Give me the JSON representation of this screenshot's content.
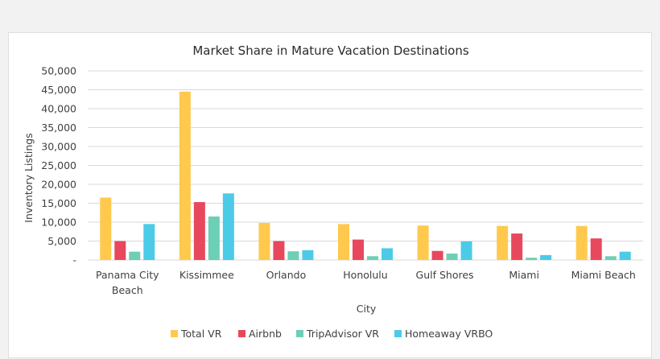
{
  "chart_data": {
    "type": "bar",
    "title": "Market Share in Mature Vacation Destinations",
    "xlabel": "City",
    "ylabel": "Inventory Listings",
    "categories": [
      [
        "Panama City",
        "Beach"
      ],
      [
        "Kissimmee"
      ],
      [
        "Orlando"
      ],
      [
        "Honolulu"
      ],
      [
        "Gulf Shores"
      ],
      [
        "Miami"
      ],
      [
        "Miami Beach"
      ]
    ],
    "series": [
      {
        "name": "Total VR",
        "color": "#ffc94d",
        "values": [
          16500,
          44500,
          9800,
          9500,
          9100,
          9000,
          9000
        ]
      },
      {
        "name": "Airbnb",
        "color": "#e8485d",
        "values": [
          5000,
          15300,
          5000,
          5400,
          2400,
          7000,
          5700
        ]
      },
      {
        "name": "TripAdvisor VR",
        "color": "#6ccfb6",
        "values": [
          2200,
          11500,
          2300,
          1000,
          1700,
          600,
          1000
        ]
      },
      {
        "name": "Homeaway VRBO",
        "color": "#4ccbe8",
        "values": [
          9500,
          17600,
          2600,
          3100,
          4900,
          1300,
          2200
        ]
      }
    ],
    "ylim": [
      0,
      50000
    ],
    "yticks": [
      "-",
      "5,000",
      "10,000",
      "15,000",
      "20,000",
      "25,000",
      "30,000",
      "35,000",
      "40,000",
      "45,000",
      "50,000"
    ],
    "ytick_values": [
      0,
      5000,
      10000,
      15000,
      20000,
      25000,
      30000,
      35000,
      40000,
      45000,
      50000
    ],
    "grid": true,
    "gridline_color": "#d9d9d9",
    "legend_position": "bottom"
  }
}
